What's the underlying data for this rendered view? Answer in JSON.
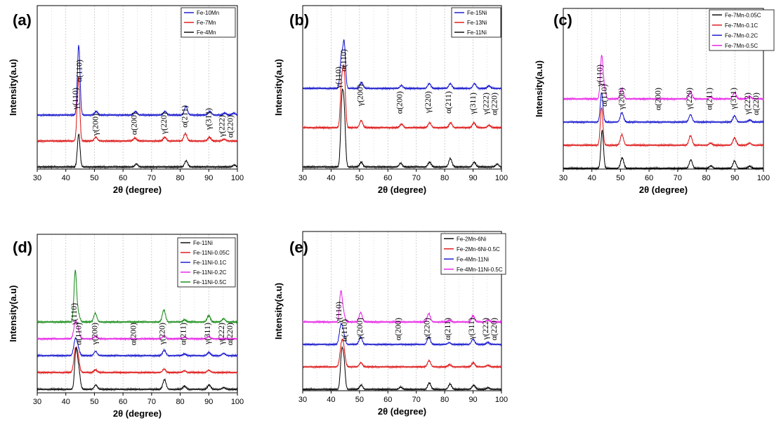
{
  "colors": {
    "black": "#000000",
    "red": "#dd1111",
    "blue": "#1111cc",
    "magenta": "#e619e6",
    "green": "#118811",
    "grid": "#bdbdbd"
  },
  "chart_data": [
    {
      "type": "line",
      "panel": "(a)",
      "xlabel": "2θ (degree)",
      "ylabel": "Intensity(a.u)",
      "xlim": [
        30,
        100
      ],
      "xticks": [
        "30",
        "40",
        "50",
        "60",
        "70",
        "80",
        "90",
        "100"
      ],
      "legend": [
        {
          "name": "Fe-10Mn",
          "color": "blue"
        },
        {
          "name": "Fe-7Mn",
          "color": "red"
        },
        {
          "name": "Fe-4Mn",
          "color": "black"
        }
      ],
      "peak_labels": [
        "γ(110)",
        "α(110)",
        "γ(200)",
        "α(200)",
        "γ(220)",
        "α(211)",
        "γ(311)",
        "γ(222)",
        "α(220)"
      ],
      "series": [
        {
          "name": "Fe-10Mn",
          "color": "blue",
          "baseline": 2,
          "peaks": [
            {
              "x": 44.5,
              "h": 2.85
            },
            {
              "x": 50.6,
              "h": 0.15
            },
            {
              "x": 64.4,
              "h": 0.15
            },
            {
              "x": 74.7,
              "h": 0.15
            },
            {
              "x": 82.0,
              "h": 0.35
            },
            {
              "x": 90.4,
              "h": 0.15
            },
            {
              "x": 95.6,
              "h": 0.08
            },
            {
              "x": 98.7,
              "h": 0.08
            }
          ]
        },
        {
          "name": "Fe-7Mn",
          "color": "red",
          "baseline": 1,
          "peaks": [
            {
              "x": 44.4,
              "h": 2.6
            },
            {
              "x": 50.5,
              "h": 0.15
            },
            {
              "x": 64.2,
              "h": 0.12
            },
            {
              "x": 74.6,
              "h": 0.15
            },
            {
              "x": 81.8,
              "h": 0.3
            },
            {
              "x": 90.2,
              "h": 0.15
            },
            {
              "x": 95.4,
              "h": 0.07
            }
          ]
        },
        {
          "name": "Fe-4Mn",
          "color": "black",
          "baseline": 0,
          "peaks": [
            {
              "x": 44.5,
              "h": 1.35
            },
            {
              "x": 64.7,
              "h": 0.12
            },
            {
              "x": 82.1,
              "h": 0.25
            },
            {
              "x": 98.9,
              "h": 0.08
            }
          ]
        }
      ]
    },
    {
      "type": "line",
      "panel": "(b)",
      "xlabel": "2θ (degree)",
      "ylabel": "Intensity(a.u)",
      "xlim": [
        30,
        100
      ],
      "xticks": [
        "30",
        "40",
        "50",
        "60",
        "70",
        "80",
        "90",
        "100"
      ],
      "legend": [
        {
          "name": "Fe-15Ni",
          "color": "blue"
        },
        {
          "name": "Fe-13Ni",
          "color": "red"
        },
        {
          "name": "Fe-11Ni",
          "color": "black"
        }
      ],
      "peak_labels": [
        "γ(110)",
        "α(110)",
        "γ(200)",
        "α(200)",
        "γ(220)",
        "α(211)",
        "γ(311)",
        "γ(222)",
        "α(220)"
      ],
      "series": [
        {
          "name": "Fe-15Ni",
          "color": "blue",
          "baseline": 2,
          "peaks": [
            {
              "x": 43.6,
              "h": 1.3
            },
            {
              "x": 44.6,
              "h": 1.9
            },
            {
              "x": 50.7,
              "h": 0.25
            },
            {
              "x": 64.8,
              "h": 0.12
            },
            {
              "x": 74.6,
              "h": 0.2
            },
            {
              "x": 82.0,
              "h": 0.2
            },
            {
              "x": 90.5,
              "h": 0.2
            },
            {
              "x": 95.6,
              "h": 0.1
            }
          ]
        },
        {
          "name": "Fe-13Ni",
          "color": "red",
          "baseline": 1,
          "peaks": [
            {
              "x": 43.7,
              "h": 1.8
            },
            {
              "x": 44.6,
              "h": 2.3
            },
            {
              "x": 50.6,
              "h": 0.3
            },
            {
              "x": 64.8,
              "h": 0.15
            },
            {
              "x": 74.7,
              "h": 0.2
            },
            {
              "x": 82.1,
              "h": 0.2
            },
            {
              "x": 90.3,
              "h": 0.2
            },
            {
              "x": 95.6,
              "h": 0.1
            }
          ]
        },
        {
          "name": "Fe-11Ni",
          "color": "black",
          "baseline": 0,
          "peaks": [
            {
              "x": 43.8,
              "h": 2.6
            },
            {
              "x": 44.6,
              "h": 2.2
            },
            {
              "x": 50.6,
              "h": 0.2
            },
            {
              "x": 64.5,
              "h": 0.15
            },
            {
              "x": 74.7,
              "h": 0.2
            },
            {
              "x": 82.0,
              "h": 0.35
            },
            {
              "x": 90.4,
              "h": 0.2
            },
            {
              "x": 98.5,
              "h": 0.12
            }
          ]
        }
      ]
    },
    {
      "type": "line",
      "panel": "(c)",
      "xlabel": "2θ (degree)",
      "ylabel": "Intensity(a.u)",
      "xlim": [
        30,
        100
      ],
      "xticks": [
        "30",
        "40",
        "50",
        "60",
        "70",
        "80",
        "90",
        "100"
      ],
      "legend": [
        {
          "name": "Fe-7Mn-0.05C",
          "color": "black"
        },
        {
          "name": "Fe-7Mn-0.1C",
          "color": "red"
        },
        {
          "name": "Fe-7Mn-0.2C",
          "color": "blue"
        },
        {
          "name": "Fe-7Mn-0.5C",
          "color": "magenta"
        }
      ],
      "peak_labels": [
        "γ(110)",
        "α(110)",
        "γ(200)",
        "α(200)",
        "γ(220)",
        "α(211)",
        "γ(311)",
        "γ(222)",
        "α(220)"
      ],
      "series": [
        {
          "name": "Fe-7Mn-0.5C",
          "color": "magenta",
          "baseline": 3,
          "peaks": [
            {
              "x": 43.4,
              "h": 1.9
            },
            {
              "x": 44.2,
              "h": 0.5
            },
            {
              "x": 50.5,
              "h": 0.5
            },
            {
              "x": 74.5,
              "h": 0.35
            },
            {
              "x": 81.5,
              "h": 0.08
            },
            {
              "x": 89.9,
              "h": 0.3
            },
            {
              "x": 95.2,
              "h": 0.12
            }
          ]
        },
        {
          "name": "Fe-7Mn-0.2C",
          "color": "blue",
          "baseline": 2,
          "peaks": [
            {
              "x": 43.4,
              "h": 1.4
            },
            {
              "x": 50.5,
              "h": 0.45
            },
            {
              "x": 74.5,
              "h": 0.35
            },
            {
              "x": 89.9,
              "h": 0.3
            },
            {
              "x": 95.2,
              "h": 0.1
            }
          ]
        },
        {
          "name": "Fe-7Mn-0.1C",
          "color": "red",
          "baseline": 1,
          "peaks": [
            {
              "x": 43.4,
              "h": 1.8
            },
            {
              "x": 50.5,
              "h": 0.5
            },
            {
              "x": 74.5,
              "h": 0.45
            },
            {
              "x": 81.5,
              "h": 0.1
            },
            {
              "x": 89.9,
              "h": 0.35
            },
            {
              "x": 95.2,
              "h": 0.1
            }
          ]
        },
        {
          "name": "Fe-7Mn-0.05C",
          "color": "black",
          "baseline": 0,
          "peaks": [
            {
              "x": 43.6,
              "h": 1.8
            },
            {
              "x": 50.6,
              "h": 0.5
            },
            {
              "x": 74.6,
              "h": 0.4
            },
            {
              "x": 81.6,
              "h": 0.12
            },
            {
              "x": 89.9,
              "h": 0.35
            },
            {
              "x": 95.2,
              "h": 0.1
            }
          ]
        }
      ]
    },
    {
      "type": "line",
      "panel": "(d)",
      "xlabel": "2θ (degree)",
      "ylabel": "Intensity(a.u)",
      "xlim": [
        30,
        100
      ],
      "xticks": [
        "30",
        "40",
        "50",
        "60",
        "70",
        "80",
        "90",
        "100"
      ],
      "legend": [
        {
          "name": "Fe-11Ni",
          "color": "black"
        },
        {
          "name": "Fe-11Ni-0.05C",
          "color": "red"
        },
        {
          "name": "Fe-11Ni-0.1C",
          "color": "blue"
        },
        {
          "name": "Fe-11Ni-0.2C",
          "color": "magenta"
        },
        {
          "name": "Fe-11Ni-0.5C",
          "color": "green"
        }
      ],
      "peak_labels": [
        "γ(110)",
        "α(110)",
        "γ(200)",
        "α(200)",
        "γ(220)",
        "α(211)",
        "γ(311)",
        "γ(222)",
        "α(220)"
      ],
      "series": [
        {
          "name": "Fe-11Ni-0.5C",
          "color": "green",
          "baseline": 4,
          "peaks": [
            {
              "x": 43.3,
              "h": 2.3
            },
            {
              "x": 44.3,
              "h": 0.4
            },
            {
              "x": 50.3,
              "h": 0.4
            },
            {
              "x": 74.3,
              "h": 0.55
            },
            {
              "x": 81.5,
              "h": 0.1
            },
            {
              "x": 90.0,
              "h": 0.3
            },
            {
              "x": 95.2,
              "h": 0.15
            }
          ]
        },
        {
          "name": "Fe-11Ni-0.2C",
          "color": "magenta",
          "baseline": 3,
          "peaks": [
            {
              "x": 43.3,
              "h": 0.7
            },
            {
              "x": 44.2,
              "h": 0.4
            },
            {
              "x": 50.4,
              "h": 0.12
            },
            {
              "x": 74.4,
              "h": 0.15
            },
            {
              "x": 81.5,
              "h": 0.08
            },
            {
              "x": 90.0,
              "h": 0.1
            }
          ]
        },
        {
          "name": "Fe-11Ni-0.1C",
          "color": "blue",
          "baseline": 2,
          "peaks": [
            {
              "x": 43.3,
              "h": 0.7
            },
            {
              "x": 44.2,
              "h": 0.35
            },
            {
              "x": 50.4,
              "h": 0.2
            },
            {
              "x": 74.4,
              "h": 0.25
            },
            {
              "x": 81.5,
              "h": 0.08
            },
            {
              "x": 90.0,
              "h": 0.15
            },
            {
              "x": 95.2,
              "h": 0.1
            }
          ]
        },
        {
          "name": "Fe-11Ni-0.05C",
          "color": "red",
          "baseline": 1,
          "peaks": [
            {
              "x": 43.3,
              "h": 0.9
            },
            {
              "x": 44.2,
              "h": 0.7
            },
            {
              "x": 50.4,
              "h": 0.12
            },
            {
              "x": 74.4,
              "h": 0.15
            },
            {
              "x": 81.5,
              "h": 0.08
            },
            {
              "x": 90.0,
              "h": 0.1
            }
          ]
        },
        {
          "name": "Fe-11Ni",
          "color": "black",
          "baseline": 0,
          "peaks": [
            {
              "x": 43.5,
              "h": 1.6
            },
            {
              "x": 44.4,
              "h": 1.0
            },
            {
              "x": 50.5,
              "h": 0.2
            },
            {
              "x": 74.5,
              "h": 0.45
            },
            {
              "x": 81.5,
              "h": 0.15
            },
            {
              "x": 90.1,
              "h": 0.2
            },
            {
              "x": 95.2,
              "h": 0.08
            }
          ]
        }
      ]
    },
    {
      "type": "line",
      "panel": "(e)",
      "xlabel": "2θ (degree)",
      "ylabel": "Intensity(a.u)",
      "xlim": [
        30,
        100
      ],
      "xticks": [
        "30",
        "40",
        "50",
        "60",
        "70",
        "80",
        "90",
        "100"
      ],
      "legend": [
        {
          "name": "Fe-2Mn-6Ni",
          "color": "black"
        },
        {
          "name": "Fe-2Mn-6Ni-0.5C",
          "color": "red"
        },
        {
          "name": "Fe-4Mn-11Ni",
          "color": "blue"
        },
        {
          "name": "Fe-4Mn-11Ni-0.5C",
          "color": "magenta"
        }
      ],
      "peak_labels": [
        "γ(110)",
        "α(110)",
        "γ(200)",
        "α(200)",
        "γ(220)",
        "α(211)",
        "γ(311)",
        "γ(222)",
        "α(220)"
      ],
      "series": [
        {
          "name": "Fe-4Mn-11Ni-0.5C",
          "color": "magenta",
          "baseline": 3,
          "peaks": [
            {
              "x": 43.4,
              "h": 1.3
            },
            {
              "x": 44.2,
              "h": 0.5
            },
            {
              "x": 50.4,
              "h": 0.45
            },
            {
              "x": 74.4,
              "h": 0.4
            },
            {
              "x": 81.7,
              "h": 0.08
            },
            {
              "x": 90.0,
              "h": 0.3
            },
            {
              "x": 95.2,
              "h": 0.1
            }
          ]
        },
        {
          "name": "Fe-4Mn-11Ni",
          "color": "blue",
          "baseline": 2,
          "peaks": [
            {
              "x": 43.4,
              "h": 0.8
            },
            {
              "x": 44.3,
              "h": 0.5
            },
            {
              "x": 50.4,
              "h": 0.35
            },
            {
              "x": 74.4,
              "h": 0.35
            },
            {
              "x": 81.6,
              "h": 0.08
            },
            {
              "x": 90.0,
              "h": 0.25
            },
            {
              "x": 95.2,
              "h": 0.1
            }
          ]
        },
        {
          "name": "Fe-2Mn-6Ni-0.5C",
          "color": "red",
          "baseline": 1,
          "peaks": [
            {
              "x": 43.6,
              "h": 0.9
            },
            {
              "x": 44.4,
              "h": 0.8
            },
            {
              "x": 50.5,
              "h": 0.2
            },
            {
              "x": 74.5,
              "h": 0.3
            },
            {
              "x": 81.7,
              "h": 0.1
            },
            {
              "x": 90.1,
              "h": 0.2
            },
            {
              "x": 95.2,
              "h": 0.08
            }
          ]
        },
        {
          "name": "Fe-2Mn-6Ni",
          "color": "black",
          "baseline": 0,
          "peaks": [
            {
              "x": 43.7,
              "h": 1.6
            },
            {
              "x": 44.5,
              "h": 1.3
            },
            {
              "x": 50.6,
              "h": 0.2
            },
            {
              "x": 64.5,
              "h": 0.1
            },
            {
              "x": 74.6,
              "h": 0.3
            },
            {
              "x": 81.9,
              "h": 0.25
            },
            {
              "x": 90.2,
              "h": 0.2
            },
            {
              "x": 95.3,
              "h": 0.08
            }
          ]
        }
      ]
    }
  ]
}
